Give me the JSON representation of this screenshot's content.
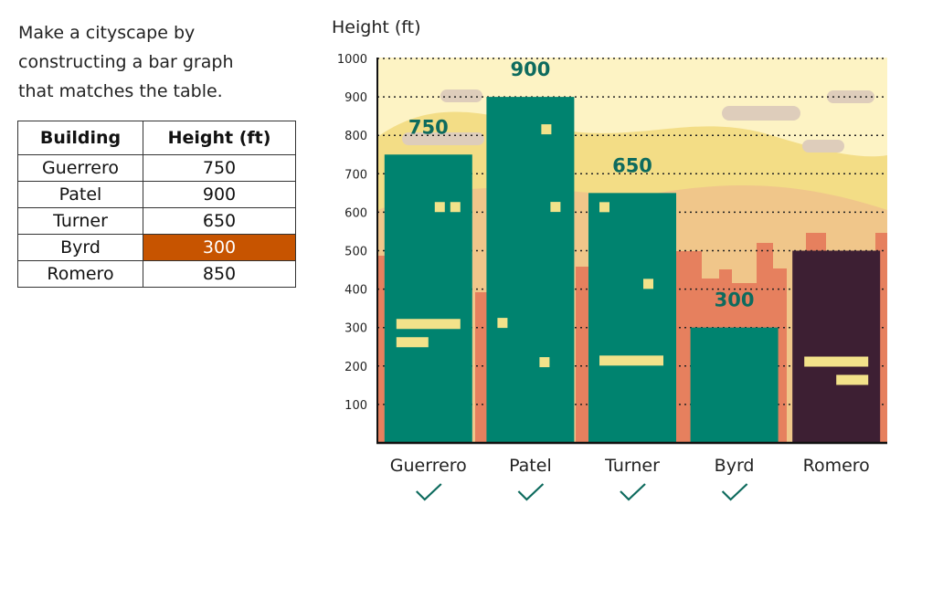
{
  "instructions": "Make a cityscape by constructing a bar graph that matches the table.",
  "table": {
    "headers": [
      "Building",
      "Height (ft)"
    ],
    "rows": [
      {
        "building": "Guerrero",
        "height": "750"
      },
      {
        "building": "Patel",
        "height": "900"
      },
      {
        "building": "Turner",
        "height": "650"
      },
      {
        "building": "Byrd",
        "height": "300"
      },
      {
        "building": "Romero",
        "height": "850"
      }
    ],
    "active_row": 3
  },
  "colors": {
    "bar_done": "#00836f",
    "bar_pending": "#3d1f33",
    "highlight": "#c75400",
    "check": "#0e6b5e",
    "value_label": "#0e6b5e",
    "window": "#f2e28a"
  },
  "chart_data": {
    "type": "bar",
    "title": "",
    "ylabel": "Height (ft)",
    "xlabel": "",
    "ylim": [
      0,
      1000
    ],
    "yticks": [
      100,
      200,
      300,
      400,
      500,
      600,
      700,
      800,
      900,
      1000
    ],
    "categories": [
      "Guerrero",
      "Patel",
      "Turner",
      "Byrd",
      "Romero"
    ],
    "values": [
      750,
      900,
      650,
      300,
      500
    ],
    "value_labels": [
      "750",
      "900",
      "650",
      "300",
      ""
    ],
    "completed": [
      true,
      true,
      true,
      true,
      false
    ],
    "grid": true
  }
}
